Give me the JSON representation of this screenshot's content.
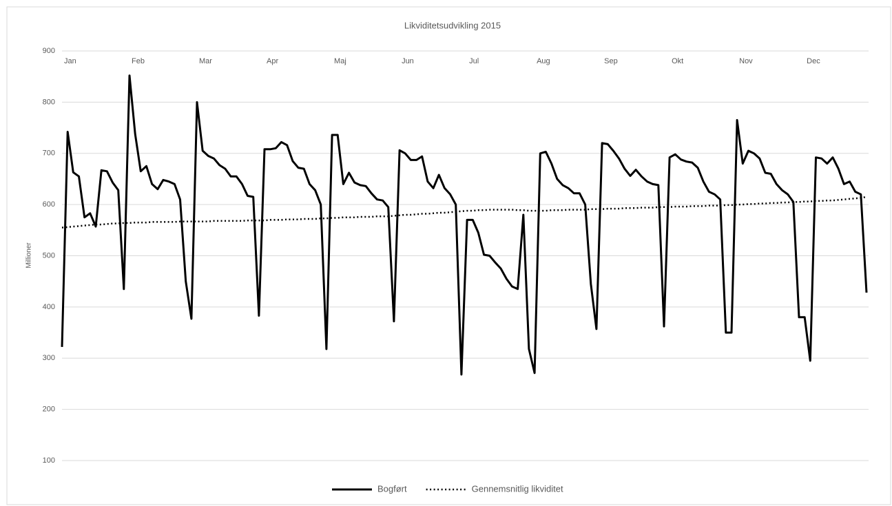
{
  "chart_data": {
    "type": "line",
    "title": "Likviditetsudvikling 2015",
    "y_label": "Millioner",
    "categories": [
      "Jan",
      null,
      null,
      null,
      null,
      null,
      null,
      null,
      null,
      null,
      null,
      null,
      "Feb",
      null,
      null,
      null,
      null,
      null,
      null,
      null,
      null,
      null,
      null,
      null,
      "Mar",
      null,
      null,
      null,
      null,
      null,
      null,
      null,
      null,
      null,
      null,
      null,
      "Apr",
      null,
      null,
      null,
      null,
      null,
      null,
      null,
      null,
      null,
      null,
      null,
      "Maj",
      null,
      null,
      null,
      null,
      null,
      null,
      null,
      null,
      null,
      null,
      null,
      "Jun",
      null,
      null,
      null,
      null,
      null,
      null,
      null,
      null,
      null,
      null,
      null,
      "Jul",
      null,
      null,
      null,
      null,
      null,
      null,
      null,
      null,
      null,
      null,
      null,
      "Aug",
      null,
      null,
      null,
      null,
      null,
      null,
      null,
      null,
      null,
      null,
      null,
      "Sep",
      null,
      null,
      null,
      null,
      null,
      null,
      null,
      null,
      null,
      null,
      null,
      "Okt",
      null,
      null,
      null,
      null,
      null,
      null,
      null,
      null,
      null,
      null,
      null,
      "Nov",
      null,
      null,
      null,
      null,
      null,
      null,
      null,
      null,
      null,
      null,
      null,
      "Dec",
      null,
      null,
      null,
      null,
      null,
      null,
      null,
      null,
      null,
      null,
      null
    ],
    "series": [
      {
        "name": "Bogført",
        "color": "#000000",
        "style": "solid",
        "values": [
          322,
          742,
          663,
          655,
          575,
          583,
          557,
          667,
          665,
          643,
          628,
          435,
          852,
          738,
          665,
          675,
          640,
          630,
          648,
          645,
          640,
          610,
          450,
          377,
          800,
          705,
          695,
          690,
          677,
          670,
          655,
          655,
          640,
          617,
          615,
          383,
          708,
          708,
          710,
          722,
          716,
          685,
          672,
          670,
          640,
          628,
          600,
          318,
          736,
          736,
          640,
          662,
          643,
          638,
          636,
          622,
          610,
          608,
          595,
          372,
          706,
          700,
          687,
          687,
          694,
          645,
          632,
          658,
          632,
          620,
          600,
          268,
          570,
          570,
          545,
          502,
          500,
          487,
          475,
          455,
          440,
          435,
          580,
          318,
          271,
          700,
          703,
          680,
          650,
          638,
          632,
          622,
          622,
          600,
          445,
          357,
          720,
          718,
          705,
          690,
          670,
          656,
          668,
          655,
          645,
          640,
          638,
          362,
          692,
          698,
          688,
          684,
          682,
          672,
          645,
          625,
          620,
          610,
          350,
          350,
          765,
          680,
          705,
          700,
          690,
          662,
          660,
          640,
          628,
          620,
          605,
          380,
          380,
          295,
          692,
          690,
          680,
          692,
          670,
          640,
          645,
          625,
          620,
          428
        ]
      },
      {
        "name": "Gennemsnitlig likviditet",
        "color": "#000000",
        "style": "dotted",
        "values": [
          555,
          556,
          557,
          558,
          559,
          560,
          561,
          561,
          562,
          563,
          563,
          564,
          564,
          565,
          565,
          565,
          566,
          566,
          566,
          566,
          566,
          567,
          567,
          567,
          567,
          567,
          567,
          568,
          568,
          568,
          568,
          568,
          568,
          569,
          569,
          569,
          569,
          570,
          570,
          570,
          571,
          571,
          571,
          572,
          572,
          572,
          573,
          573,
          574,
          574,
          575,
          575,
          575,
          576,
          576,
          576,
          577,
          577,
          577,
          578,
          579,
          580,
          580,
          581,
          582,
          582,
          583,
          584,
          584,
          585,
          586,
          587,
          588,
          588,
          589,
          589,
          590,
          590,
          590,
          590,
          590,
          589,
          589,
          588,
          588,
          588,
          588,
          589,
          589,
          589,
          590,
          590,
          590,
          590,
          591,
          591,
          591,
          592,
          592,
          592,
          593,
          593,
          593,
          594,
          594,
          594,
          595,
          595,
          595,
          596,
          596,
          596,
          597,
          597,
          597,
          598,
          598,
          598,
          599,
          599,
          600,
          600,
          601,
          601,
          602,
          602,
          603,
          603,
          604,
          604,
          605,
          605,
          606,
          606,
          607,
          607,
          608,
          608,
          609,
          610,
          611,
          612,
          613,
          615
        ]
      }
    ],
    "ylim": [
      100,
      900
    ],
    "yticks": [
      100,
      200,
      300,
      400,
      500,
      600,
      700,
      800,
      900
    ],
    "grid": true
  }
}
